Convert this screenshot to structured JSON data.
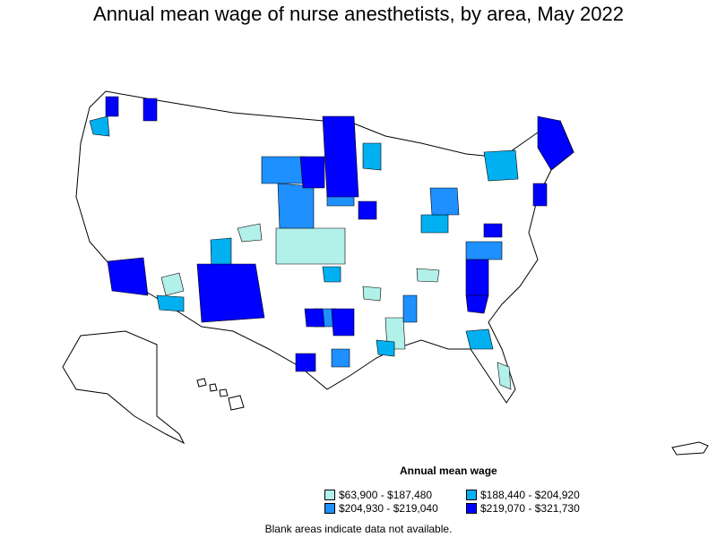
{
  "title": "Annual mean wage of nurse anesthetists, by area, May 2022",
  "legend": {
    "title": "Annual mean wage",
    "items": [
      {
        "label": "$63,900 - $187,480",
        "color": "#b2f0ea"
      },
      {
        "label": "$188,440 - $204,920",
        "color": "#00b0f0"
      },
      {
        "label": "$204,930 - $219,040",
        "color": "#1e90ff"
      },
      {
        "label": "$219,070 - $321,730",
        "color": "#0000ff"
      }
    ]
  },
  "note": "Blank areas indicate data not available.",
  "colors": {
    "outline": "#000000",
    "blank": "#ffffff"
  }
}
